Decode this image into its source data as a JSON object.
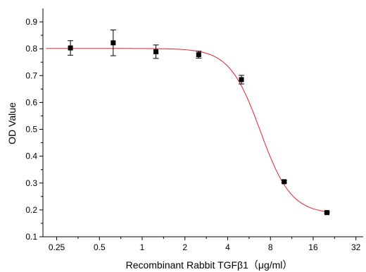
{
  "chart_data": {
    "type": "scatter",
    "xscale": "log2",
    "xlabel": "Recombinant Rabbit TGFβ1（μg/ml）",
    "ylabel": "OD Value",
    "xlim": [
      0.2,
      36
    ],
    "ylim": [
      0.1,
      0.95
    ],
    "x_ticks": [
      0.25,
      0.5,
      1,
      2,
      4,
      8,
      16,
      32
    ],
    "x_tick_labels": [
      "0.25",
      "0.5",
      "1",
      "2",
      "4",
      "8",
      "16",
      "32"
    ],
    "y_ticks": [
      0.1,
      0.2,
      0.3,
      0.4,
      0.5,
      0.6,
      0.7,
      0.8,
      0.9
    ],
    "y_tick_labels": [
      "0.1",
      "0.2",
      "0.3",
      "0.4",
      "0.5",
      "0.6",
      "0.7",
      "0.8",
      "0.9"
    ],
    "points": [
      {
        "x": 0.3125,
        "y": 0.803,
        "err": 0.027
      },
      {
        "x": 0.625,
        "y": 0.822,
        "err": 0.048
      },
      {
        "x": 1.25,
        "y": 0.789,
        "err": 0.025
      },
      {
        "x": 2.5,
        "y": 0.778,
        "err": 0.013
      },
      {
        "x": 5,
        "y": 0.685,
        "err": 0.016
      },
      {
        "x": 10,
        "y": 0.305,
        "err": 0.004
      },
      {
        "x": 20,
        "y": 0.19,
        "err": 0.003
      }
    ],
    "fit": {
      "top": 0.801,
      "bottom": 0.185,
      "ec50": 6.8,
      "hill": 4.0
    },
    "colors": {
      "fit": "#e8202a",
      "marker": "#000000"
    },
    "grid": false
  }
}
